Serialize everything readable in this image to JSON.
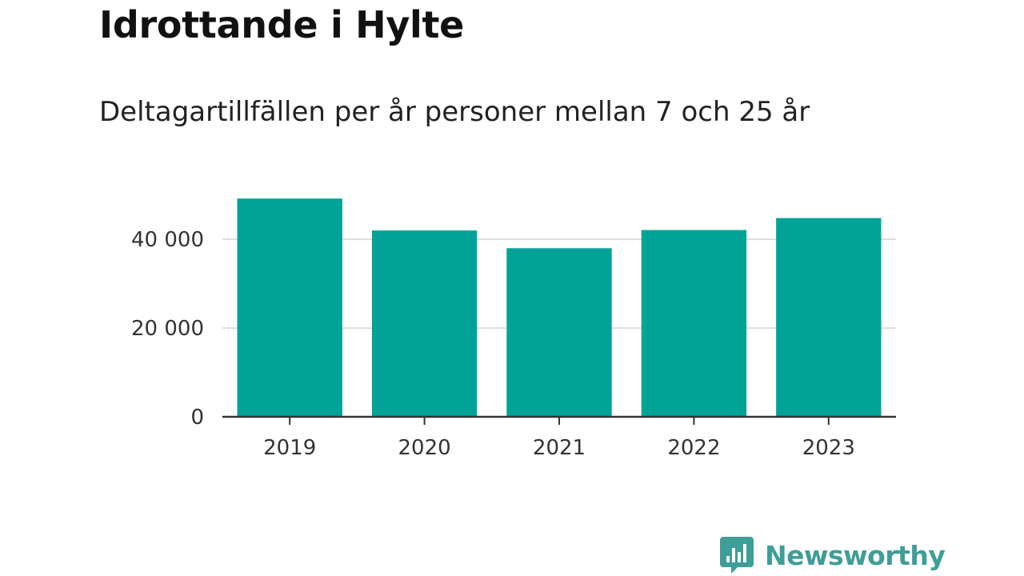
{
  "chart_data": {
    "type": "bar",
    "title": "Idrottande i Hylte",
    "subtitle": "Deltagartillfällen per år personer mellan 7 och 25 år",
    "categories": [
      "2019",
      "2020",
      "2021",
      "2022",
      "2023"
    ],
    "values": [
      49200,
      42000,
      38000,
      42100,
      44800
    ],
    "ylim": [
      0,
      55000
    ],
    "yticks": [
      0,
      20000,
      40000
    ],
    "ytick_labels": [
      "0",
      "20 000",
      "40 000"
    ],
    "grid": true,
    "bar_color": "#00A396"
  },
  "logo": {
    "name": "Newsworthy",
    "color": "#3F9E97",
    "icon": "bar-chart-speech-bubble-icon"
  }
}
